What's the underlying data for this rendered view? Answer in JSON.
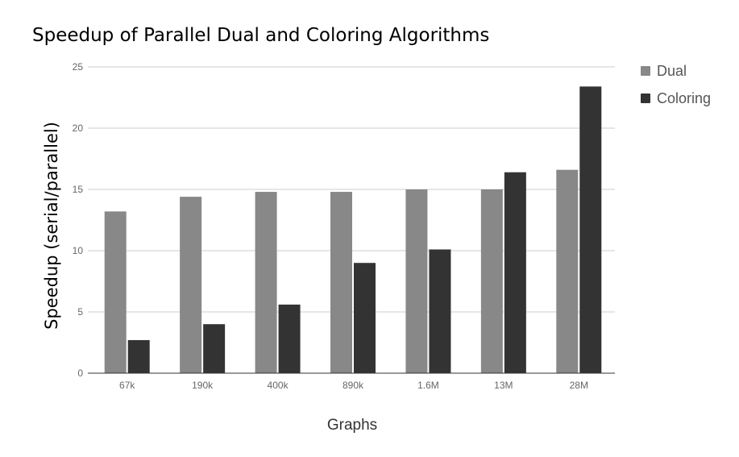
{
  "chart_data": {
    "type": "bar",
    "title": "Speedup of Parallel Dual and Coloring Algorithms",
    "xlabel": "Graphs",
    "ylabel": "Speedup (serial/parallel)",
    "categories": [
      "67k",
      "190k",
      "400k",
      "890k",
      "1.6M",
      "13M",
      "28M"
    ],
    "series": [
      {
        "name": "Dual",
        "color": "#888888",
        "values": [
          13.2,
          14.4,
          14.8,
          14.8,
          15.0,
          15.0,
          16.6
        ]
      },
      {
        "name": "Coloring",
        "color": "#333333",
        "values": [
          2.7,
          4.0,
          5.6,
          9.0,
          10.1,
          16.4,
          23.4
        ]
      }
    ],
    "ylim": [
      0,
      25
    ],
    "yticks": [
      0,
      5,
      10,
      15,
      20,
      25
    ],
    "grid": true,
    "legend_position": "right"
  }
}
